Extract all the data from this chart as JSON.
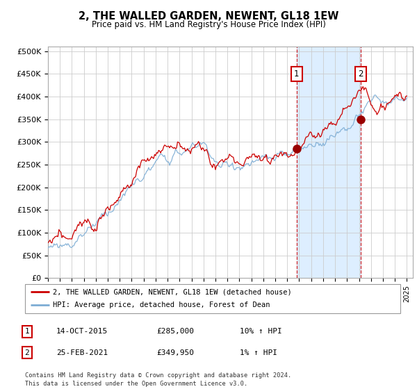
{
  "title": "2, THE WALLED GARDEN, NEWENT, GL18 1EW",
  "subtitle": "Price paid vs. HM Land Registry's House Price Index (HPI)",
  "ylabel_ticks": [
    "£0",
    "£50K",
    "£100K",
    "£150K",
    "£200K",
    "£250K",
    "£300K",
    "£350K",
    "£400K",
    "£450K",
    "£500K"
  ],
  "ytick_vals": [
    0,
    50000,
    100000,
    150000,
    200000,
    250000,
    300000,
    350000,
    400000,
    450000,
    500000
  ],
  "ylim": [
    0,
    510000
  ],
  "xlim_start": 1995.0,
  "xlim_end": 2025.5,
  "marker1_x": 2015.79,
  "marker1_label": "1",
  "marker1_price": 285000,
  "marker2_x": 2021.15,
  "marker2_label": "2",
  "marker2_price": 349950,
  "shade_color": "#ddeeff",
  "line1_color": "#cc0000",
  "line2_color": "#7dadd4",
  "grid_color": "#cccccc",
  "background_color": "#ffffff",
  "legend_line1": "2, THE WALLED GARDEN, NEWENT, GL18 1EW (detached house)",
  "legend_line2": "HPI: Average price, detached house, Forest of Dean",
  "table_row1_num": "1",
  "table_row1_date": "14-OCT-2015",
  "table_row1_price": "£285,000",
  "table_row1_hpi": "10% ↑ HPI",
  "table_row2_num": "2",
  "table_row2_date": "25-FEB-2021",
  "table_row2_price": "£349,950",
  "table_row2_hpi": "1% ↑ HPI",
  "footer": "Contains HM Land Registry data © Crown copyright and database right 2024.\nThis data is licensed under the Open Government Licence v3.0."
}
